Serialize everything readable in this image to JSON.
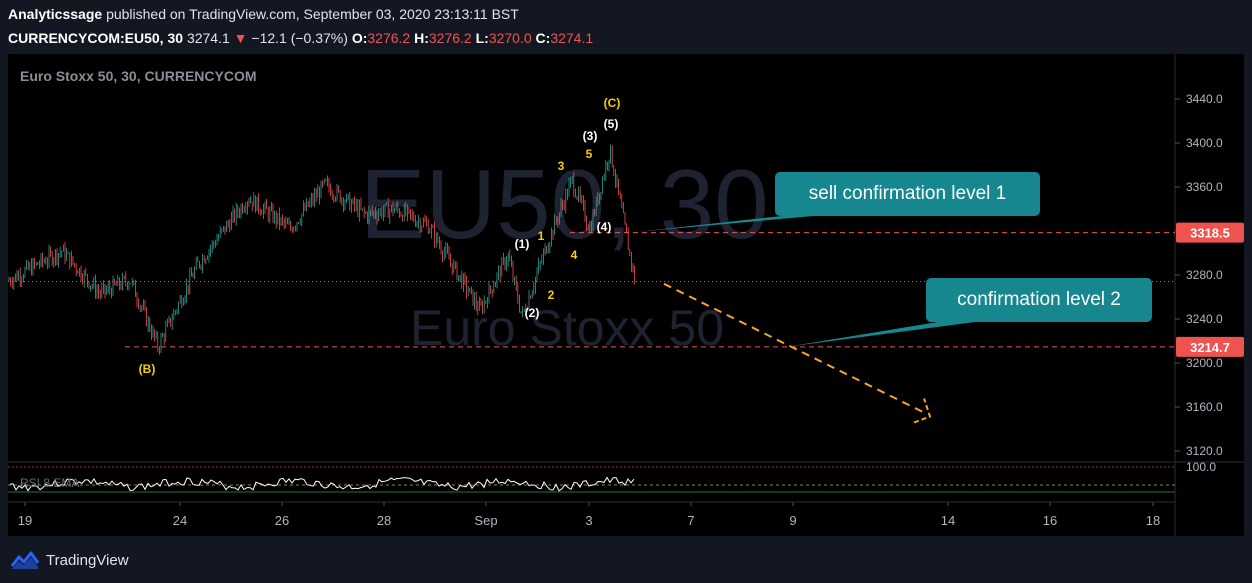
{
  "header": {
    "author": "Analyticssage",
    "published_text": "published on TradingView.com, September 03, 2020 23:13:11 BST",
    "symbol": "CURRENCYCOM:EU50, 30",
    "last": "3274.1",
    "change": "−12.1 (−0.37%)",
    "o_label": "O:",
    "o_value": "3276.2",
    "h_label": "H:",
    "h_value": "3276.2",
    "l_label": "L:",
    "l_value": "3270.0",
    "c_label": "C:",
    "c_value": "3274.1"
  },
  "pane_title": "Euro Stoxx 50, 30, CURRENCYCOM",
  "watermark": {
    "line1": "EU50, 30",
    "line2": "Euro Stoxx 50"
  },
  "footer": {
    "brand": "TradingView"
  },
  "colors": {
    "up": "#26a69a",
    "down": "#ef5350",
    "level_line": "#ef5350",
    "callout": "#16868f",
    "wave_white": "#ffffff",
    "wave_yellow": "#f5d000",
    "arrow": "#f7a32c",
    "rsi": "#ffffff"
  },
  "chart_data": {
    "type": "line",
    "title": "Euro Stoxx 50, 30, CURRENCYCOM",
    "y_axis": {
      "ticks": [
        3120.0,
        3160.0,
        3200.0,
        3240.0,
        3280.0,
        3320.0,
        3360.0,
        3400.0,
        3440.0
      ],
      "ylim": [
        3100,
        3460
      ]
    },
    "x_axis": {
      "ticks": [
        "19",
        "24",
        "26",
        "28",
        "Sep",
        "3",
        "7",
        "9",
        "14",
        "16",
        "18"
      ]
    },
    "price_path": [
      {
        "t": "19",
        "v": 3275
      },
      {
        "t": "20",
        "v": 3302
      },
      {
        "t": "21",
        "v": 3263
      },
      {
        "t": "22",
        "v": 3276
      },
      {
        "t": "23",
        "v": 3215
      },
      {
        "t": "24",
        "v": 3290
      },
      {
        "t": "25",
        "v": 3350
      },
      {
        "t": "26",
        "v": 3322
      },
      {
        "t": "27",
        "v": 3362
      },
      {
        "t": "28",
        "v": 3335
      },
      {
        "t": "29",
        "v": 3340
      },
      {
        "t": "30",
        "v": 3325
      },
      {
        "t": "31",
        "v": 3248
      },
      {
        "t": "Sep",
        "v": 3298
      },
      {
        "t": "Sep 1",
        "v": 3242
      },
      {
        "t": "Sep 2",
        "v": 3310
      },
      {
        "t": "Sep 2b",
        "v": 3366
      },
      {
        "t": "Sep 3",
        "v": 3322
      },
      {
        "t": "Sep 3b",
        "v": 3394
      },
      {
        "t": "Sep 3c",
        "v": 3274
      }
    ],
    "levels": [
      {
        "name": "sell confirmation level 1",
        "price": "3318.5",
        "value": 3318.5
      },
      {
        "name": "confirmation level 2",
        "price": "3214.7",
        "value": 3214.7
      },
      {
        "name": "last",
        "value": 3274.1
      }
    ],
    "wave_labels": [
      {
        "text": "(B)",
        "color": "yellow"
      },
      {
        "text": "(1)",
        "color": "white"
      },
      {
        "text": "(2)",
        "color": "white"
      },
      {
        "text": "1",
        "color": "yellow"
      },
      {
        "text": "2",
        "color": "yellow"
      },
      {
        "text": "3",
        "color": "yellow"
      },
      {
        "text": "4",
        "color": "yellow"
      },
      {
        "text": "5",
        "color": "yellow"
      },
      {
        "text": "(3)",
        "color": "white"
      },
      {
        "text": "(4)",
        "color": "white"
      },
      {
        "text": "(5)",
        "color": "white"
      },
      {
        "text": "(C)",
        "color": "yellow"
      }
    ],
    "annotations": [
      {
        "text": "sell confirmation level 1"
      },
      {
        "text": "confirmation level 2"
      }
    ],
    "projection": {
      "from_value": 3272,
      "to_value": 3155
    },
    "rsi": {
      "label": "RSI 8 EMA",
      "tick": "100.0"
    }
  }
}
